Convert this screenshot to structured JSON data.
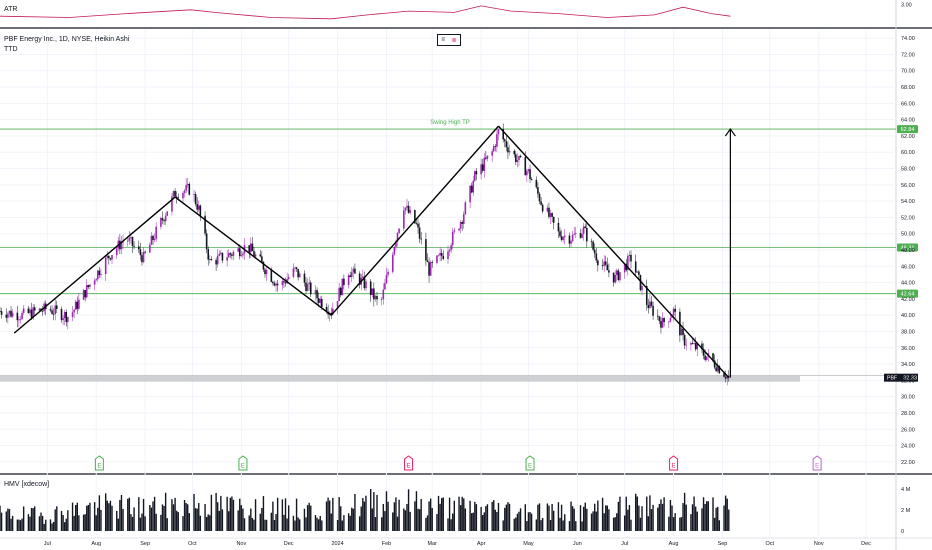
{
  "header": {
    "title": "PBF Energy Inc., 1D, NYSE, Heikin Ashi",
    "indicator": "TTD"
  },
  "controls": {
    "hide_symbol": "≡",
    "remove_symbol": "⊗"
  },
  "atr_pane": {
    "label": "ATR",
    "axis_value": "3.00"
  },
  "hmv_pane": {
    "label": "HMV [xdecow]",
    "ticks": [
      "4 M",
      "2 M",
      "0"
    ]
  },
  "colors": {
    "up_candle": "#9c27b0",
    "down_candle": "#131722",
    "atr_line": "#c2185b",
    "level_line": "#4caf50",
    "price_label_bg": "#4caf50",
    "current_price_bg": "#131722",
    "earnings_green": "#4caf50",
    "earnings_pink": "#e91e63",
    "earnings_purple": "#ba68c8"
  },
  "chart_data": {
    "type": "candlestick",
    "symbol": "PBF",
    "y_ticks": [
      "74.00",
      "72.00",
      "70.00",
      "68.00",
      "66.00",
      "64.00",
      "62.00",
      "60.00",
      "58.00",
      "56.00",
      "54.00",
      "52.00",
      "50.00",
      "48.00",
      "46.00",
      "44.00",
      "42.00",
      "40.00",
      "38.00",
      "36.00",
      "34.00",
      "32.00",
      "30.00",
      "28.00",
      "26.00",
      "24.00",
      "22.00"
    ],
    "ylim": [
      21,
      75
    ],
    "x_ticks": [
      "Jul",
      "Aug",
      "Sep",
      "Oct",
      "Nov",
      "Dec",
      "2024",
      "Feb",
      "Mar",
      "Apr",
      "May",
      "Jun",
      "Jul",
      "Aug",
      "Sep",
      "Oct",
      "Nov",
      "Dec"
    ],
    "levels": [
      {
        "value": 62.84,
        "label": "62.84",
        "annotation": "Swing High TP"
      },
      {
        "value": 48.31,
        "label": "48.31"
      },
      {
        "value": 42.64,
        "label": "42.64"
      }
    ],
    "current_price": {
      "symbol": "PBF",
      "value": 32.33,
      "label": "32.33"
    },
    "trendline_points": [
      {
        "date": "2023-06-10",
        "price": 37.8
      },
      {
        "date": "2023-09-20",
        "price": 54.5
      },
      {
        "date": "2023-12-28",
        "price": 40.0
      },
      {
        "date": "2024-04-12",
        "price": 63.2
      },
      {
        "date": "2024-09-05",
        "price": 32.33
      }
    ],
    "target_arrow": {
      "date": "2024-09-06",
      "from": 32.33,
      "to": 62.84
    },
    "closes": [
      {
        "x": "2023-06-01",
        "c": 40.5
      },
      {
        "x": "2023-06-15",
        "c": 40.0
      },
      {
        "x": "2023-07-01",
        "c": 40.8
      },
      {
        "x": "2023-07-15",
        "c": 39.8
      },
      {
        "x": "2023-08-01",
        "c": 45.0
      },
      {
        "x": "2023-08-10",
        "c": 47.5
      },
      {
        "x": "2023-08-20",
        "c": 49.5
      },
      {
        "x": "2023-08-31",
        "c": 47.0
      },
      {
        "x": "2023-09-10",
        "c": 51.0
      },
      {
        "x": "2023-09-20",
        "c": 55.0
      },
      {
        "x": "2023-09-30",
        "c": 55.5
      },
      {
        "x": "2023-10-05",
        "c": 53.0
      },
      {
        "x": "2023-10-12",
        "c": 46.5
      },
      {
        "x": "2023-10-25",
        "c": 47.5
      },
      {
        "x": "2023-11-05",
        "c": 48.5
      },
      {
        "x": "2023-11-15",
        "c": 46.0
      },
      {
        "x": "2023-11-25",
        "c": 43.5
      },
      {
        "x": "2023-12-05",
        "c": 45.5
      },
      {
        "x": "2023-12-15",
        "c": 43.0
      },
      {
        "x": "2023-12-28",
        "c": 40.5
      },
      {
        "x": "2024-01-08",
        "c": 45.5
      },
      {
        "x": "2024-01-20",
        "c": 43.5
      },
      {
        "x": "2024-01-28",
        "c": 41.0
      },
      {
        "x": "2024-02-05",
        "c": 48.0
      },
      {
        "x": "2024-02-12",
        "c": 53.5
      },
      {
        "x": "2024-02-20",
        "c": 51.0
      },
      {
        "x": "2024-02-28",
        "c": 45.5
      },
      {
        "x": "2024-03-10",
        "c": 48.0
      },
      {
        "x": "2024-03-20",
        "c": 52.0
      },
      {
        "x": "2024-03-28",
        "c": 57.0
      },
      {
        "x": "2024-04-08",
        "c": 60.0
      },
      {
        "x": "2024-04-12",
        "c": 62.5
      },
      {
        "x": "2024-04-20",
        "c": 60.0
      },
      {
        "x": "2024-05-01",
        "c": 57.5
      },
      {
        "x": "2024-05-10",
        "c": 53.5
      },
      {
        "x": "2024-05-20",
        "c": 50.0
      },
      {
        "x": "2024-05-28",
        "c": 49.5
      },
      {
        "x": "2024-06-05",
        "c": 50.5
      },
      {
        "x": "2024-06-15",
        "c": 46.5
      },
      {
        "x": "2024-06-25",
        "c": 44.5
      },
      {
        "x": "2024-07-05",
        "c": 47.0
      },
      {
        "x": "2024-07-15",
        "c": 41.5
      },
      {
        "x": "2024-07-25",
        "c": 39.0
      },
      {
        "x": "2024-08-01",
        "c": 40.5
      },
      {
        "x": "2024-08-07",
        "c": 37.0
      },
      {
        "x": "2024-08-15",
        "c": 36.0
      },
      {
        "x": "2024-08-25",
        "c": 34.5
      },
      {
        "x": "2024-09-05",
        "c": 32.33
      }
    ],
    "atr": [
      {
        "x": "2023-06-01",
        "v": 2.1
      },
      {
        "x": "2023-07-15",
        "v": 2.0
      },
      {
        "x": "2023-08-20",
        "v": 2.3
      },
      {
        "x": "2023-09-30",
        "v": 2.6
      },
      {
        "x": "2023-10-15",
        "v": 2.4
      },
      {
        "x": "2023-11-20",
        "v": 2.0
      },
      {
        "x": "2023-12-28",
        "v": 1.9
      },
      {
        "x": "2024-01-20",
        "v": 2.2
      },
      {
        "x": "2024-02-15",
        "v": 2.5
      },
      {
        "x": "2024-03-15",
        "v": 2.4
      },
      {
        "x": "2024-04-01",
        "v": 2.9
      },
      {
        "x": "2024-04-20",
        "v": 2.5
      },
      {
        "x": "2024-05-20",
        "v": 2.3
      },
      {
        "x": "2024-06-20",
        "v": 2.0
      },
      {
        "x": "2024-07-20",
        "v": 2.2
      },
      {
        "x": "2024-08-07",
        "v": 2.8
      },
      {
        "x": "2024-08-25",
        "v": 2.3
      },
      {
        "x": "2024-09-06",
        "v": 2.1
      }
    ],
    "earnings_events": [
      {
        "date": "2023-08-03",
        "type": "green"
      },
      {
        "date": "2023-11-02",
        "type": "green"
      },
      {
        "date": "2024-02-15",
        "type": "pink"
      },
      {
        "date": "2024-05-02",
        "type": "green"
      },
      {
        "date": "2024-08-01",
        "type": "pink"
      },
      {
        "date": "2024-10-31",
        "type": "purple"
      }
    ],
    "volume_m": [
      {
        "x": "2023-06-01",
        "v": 1.6
      },
      {
        "x": "2023-07-01",
        "v": 1.5
      },
      {
        "x": "2023-08-01",
        "v": 2.4
      },
      {
        "x": "2023-09-01",
        "v": 2.2
      },
      {
        "x": "2023-10-01",
        "v": 2.6
      },
      {
        "x": "2023-11-01",
        "v": 2.3
      },
      {
        "x": "2023-12-01",
        "v": 2.0
      },
      {
        "x": "2024-01-01",
        "v": 2.1
      },
      {
        "x": "2024-02-01",
        "v": 3.0
      },
      {
        "x": "2024-03-01",
        "v": 2.4
      },
      {
        "x": "2024-04-01",
        "v": 2.2
      },
      {
        "x": "2024-05-01",
        "v": 2.0
      },
      {
        "x": "2024-06-01",
        "v": 1.8
      },
      {
        "x": "2024-07-01",
        "v": 2.3
      },
      {
        "x": "2024-08-01",
        "v": 2.5
      },
      {
        "x": "2024-09-06",
        "v": 2.2
      }
    ]
  }
}
